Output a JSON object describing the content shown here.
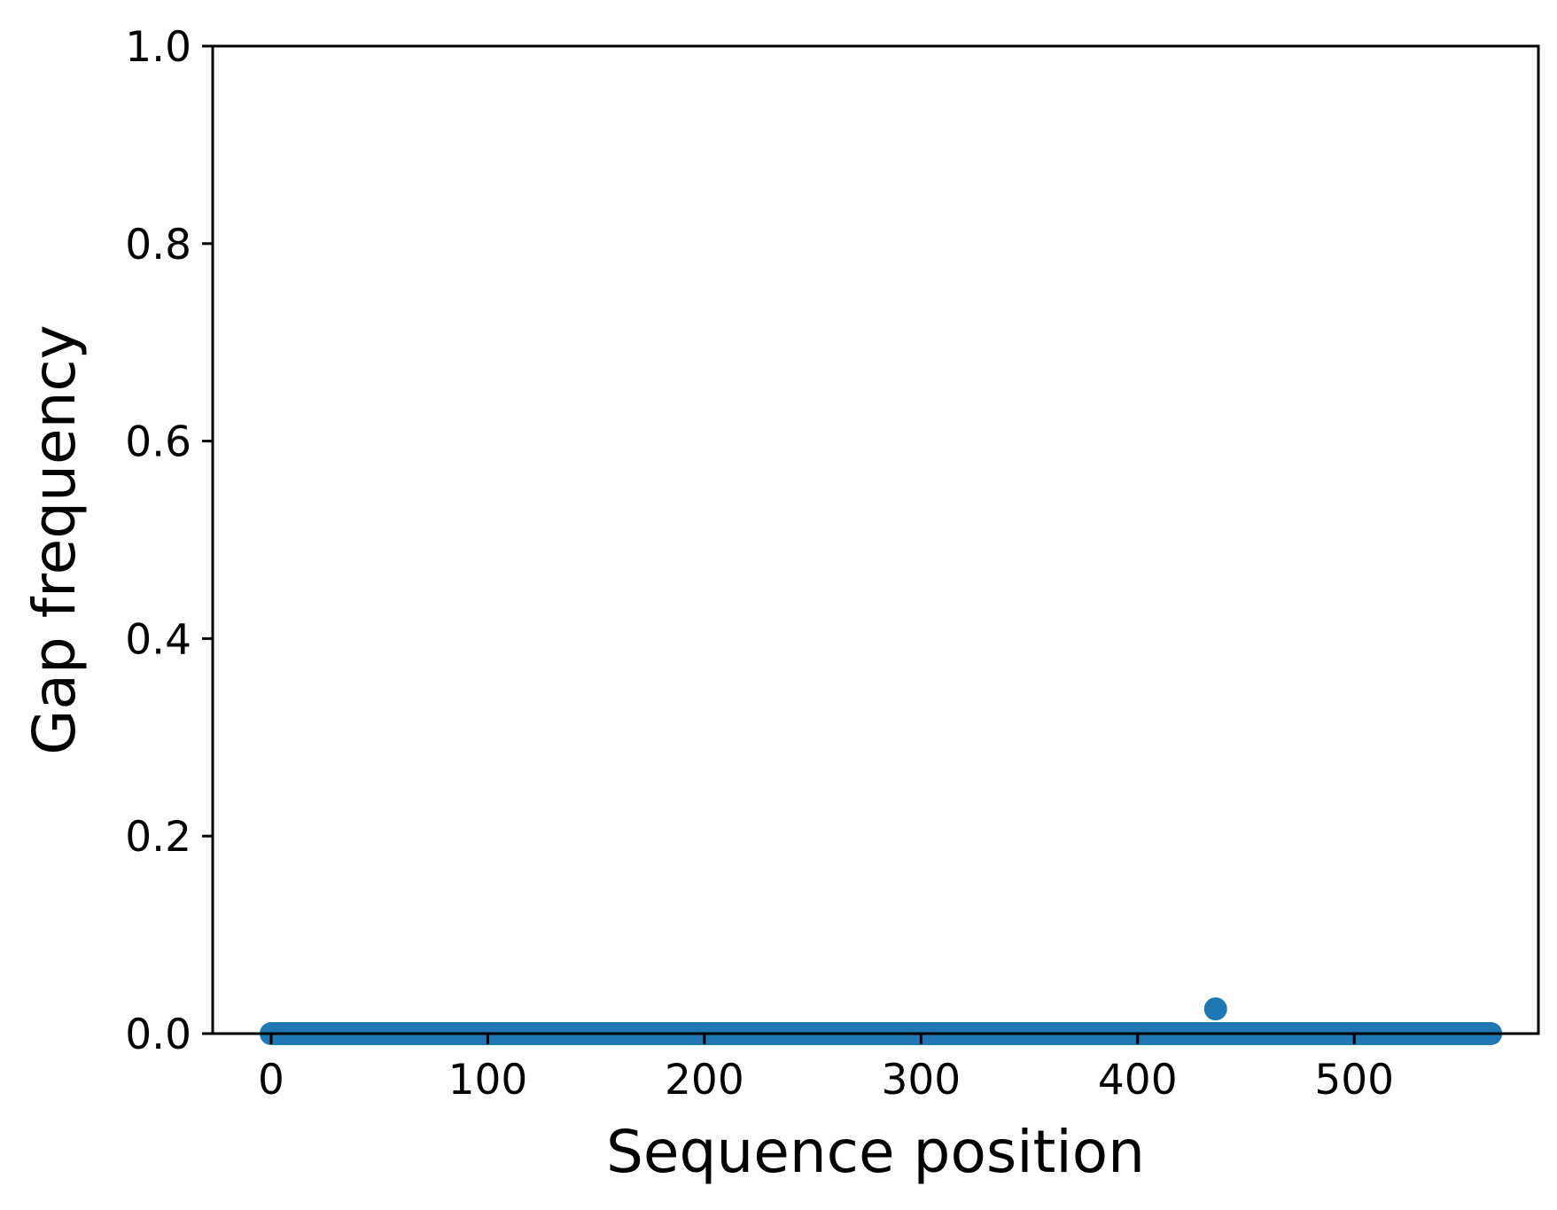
{
  "chart_data": {
    "type": "scatter",
    "title": "",
    "xlabel": "Sequence position",
    "ylabel": "Gap frequency",
    "xlim": [
      -27,
      585
    ],
    "ylim": [
      0,
      1
    ],
    "grid": false,
    "legend": "none",
    "x_ticks": [
      "0",
      "100",
      "200",
      "300",
      "400",
      "500"
    ],
    "y_ticks": [
      "0.0",
      "0.2",
      "0.4",
      "0.6",
      "0.8",
      "1.0"
    ],
    "series": [
      {
        "color": "#1f77b4",
        "marker": "circle",
        "x_range": [
          0,
          563
        ],
        "baseline_value": 0.0,
        "points": [
          {
            "x": 436,
            "y": 0.025
          }
        ]
      }
    ]
  }
}
